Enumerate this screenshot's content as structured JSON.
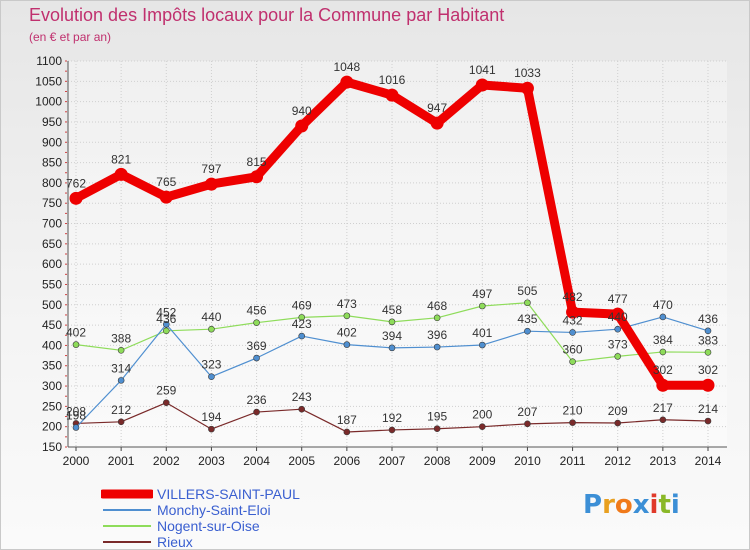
{
  "header": {
    "title": "Evolution des Impôts locaux pour la Commune par Habitant",
    "subtitle": "(en € et par an)"
  },
  "logo": {
    "text": "Proxiti",
    "letters": [
      {
        "ch": "P",
        "color": "#3c8fd6"
      },
      {
        "ch": "r",
        "color": "#e8a020"
      },
      {
        "ch": "o",
        "color": "#f07a1a"
      },
      {
        "ch": "x",
        "color": "#3c8fd6"
      },
      {
        "ch": "i",
        "color": "#e03a2a"
      },
      {
        "ch": "t",
        "color": "#8ab828"
      },
      {
        "ch": "i",
        "color": "#3c8fd6"
      }
    ]
  },
  "chart_data": {
    "type": "line",
    "title": "Evolution des Impôts locaux pour la Commune par Habitant",
    "subtitle": "(en € et par an)",
    "xlabel": "",
    "ylabel": "",
    "x": [
      "2000",
      "2001",
      "2002",
      "2003",
      "2004",
      "2005",
      "2006",
      "2007",
      "2008",
      "2009",
      "2010",
      "2011",
      "2012",
      "2013",
      "2014"
    ],
    "ylim": [
      150,
      1100
    ],
    "yticks": [
      "150",
      "200",
      "250",
      "300",
      "350",
      "400",
      "450",
      "500",
      "550",
      "600",
      "650",
      "700",
      "750",
      "800",
      "850",
      "900",
      "950",
      "1000",
      "1050",
      "1100"
    ],
    "grid": true,
    "legend_position": "bottom-left",
    "series": [
      {
        "name": "VILLERS-SAINT-PAUL",
        "color": "#ee0000",
        "style": "thick",
        "values": [
          762,
          821,
          765,
          797,
          815,
          940,
          1048,
          1016,
          947,
          1041,
          1033,
          482,
          477,
          302,
          302
        ],
        "labels": [
          "762",
          "821",
          "765",
          "797",
          "815",
          "940",
          "1048",
          "1016",
          "947",
          "1041",
          "1033",
          "482",
          "477",
          "302",
          "302"
        ]
      },
      {
        "name": "Monchy-Saint-Eloi",
        "color": "#4f8fd0",
        "style": "thin",
        "values": [
          198,
          314,
          452,
          323,
          369,
          423,
          402,
          394,
          396,
          401,
          435,
          432,
          440,
          470,
          436
        ],
        "labels": [
          "198",
          "314",
          "452",
          "323",
          "369",
          "423",
          "402",
          "394",
          "396",
          "401",
          "435",
          "432",
          "440",
          "470",
          "436"
        ]
      },
      {
        "name": "Nogent-sur-Oise",
        "color": "#8edc5a",
        "style": "thin",
        "values": [
          402,
          388,
          436,
          440,
          456,
          469,
          473,
          458,
          468,
          497,
          505,
          360,
          373,
          384,
          383
        ],
        "labels": [
          "402",
          "388",
          "436",
          "440",
          "456",
          "469",
          "473",
          "458",
          "468",
          "497",
          "505",
          "360",
          "373",
          "384",
          "383"
        ]
      },
      {
        "name": "Rieux",
        "color": "#7a2a2a",
        "style": "thin",
        "values": [
          208,
          212,
          259,
          194,
          236,
          243,
          187,
          192,
          195,
          200,
          207,
          210,
          209,
          217,
          214
        ],
        "labels": [
          "208",
          "212",
          "259",
          "194",
          "236",
          "243",
          "187",
          "192",
          "195",
          "200",
          "207",
          "210",
          "209",
          "217",
          "214"
        ]
      }
    ]
  }
}
